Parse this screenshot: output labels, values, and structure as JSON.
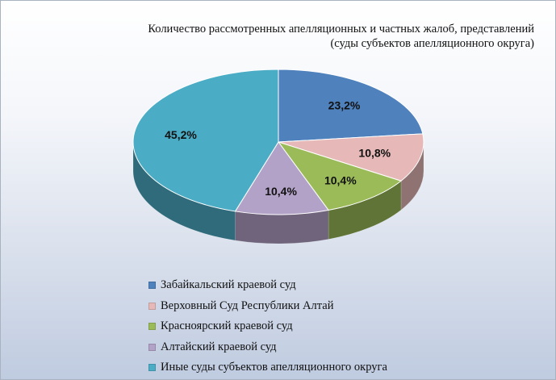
{
  "chart_data": {
    "type": "pie",
    "title_line1": "Количество рассмотренных апелляционных и частных жалоб, представлений",
    "title_line2": "(суды субъектов апелляционного округа)",
    "legend_position": "bottom",
    "slices": [
      {
        "label": "Забайкальский краевой суд",
        "value": 23.2,
        "value_label": "23,2%",
        "color": "#4f81bd"
      },
      {
        "label": "Верховный Суд Республики Алтай",
        "value": 10.8,
        "value_label": "10,8%",
        "color": "#e6b9b8"
      },
      {
        "label": "Красноярский краевой суд",
        "value": 10.4,
        "value_label": "10,4%",
        "color": "#9bbb59"
      },
      {
        "label": "Алтайский краевой суд",
        "value": 10.4,
        "value_label": "10,4%",
        "color": "#b3a2c7"
      },
      {
        "label": "Иные суды субъектов апелляционного округа",
        "value": 45.2,
        "value_label": "45,2%",
        "color": "#4bacc6"
      }
    ]
  }
}
